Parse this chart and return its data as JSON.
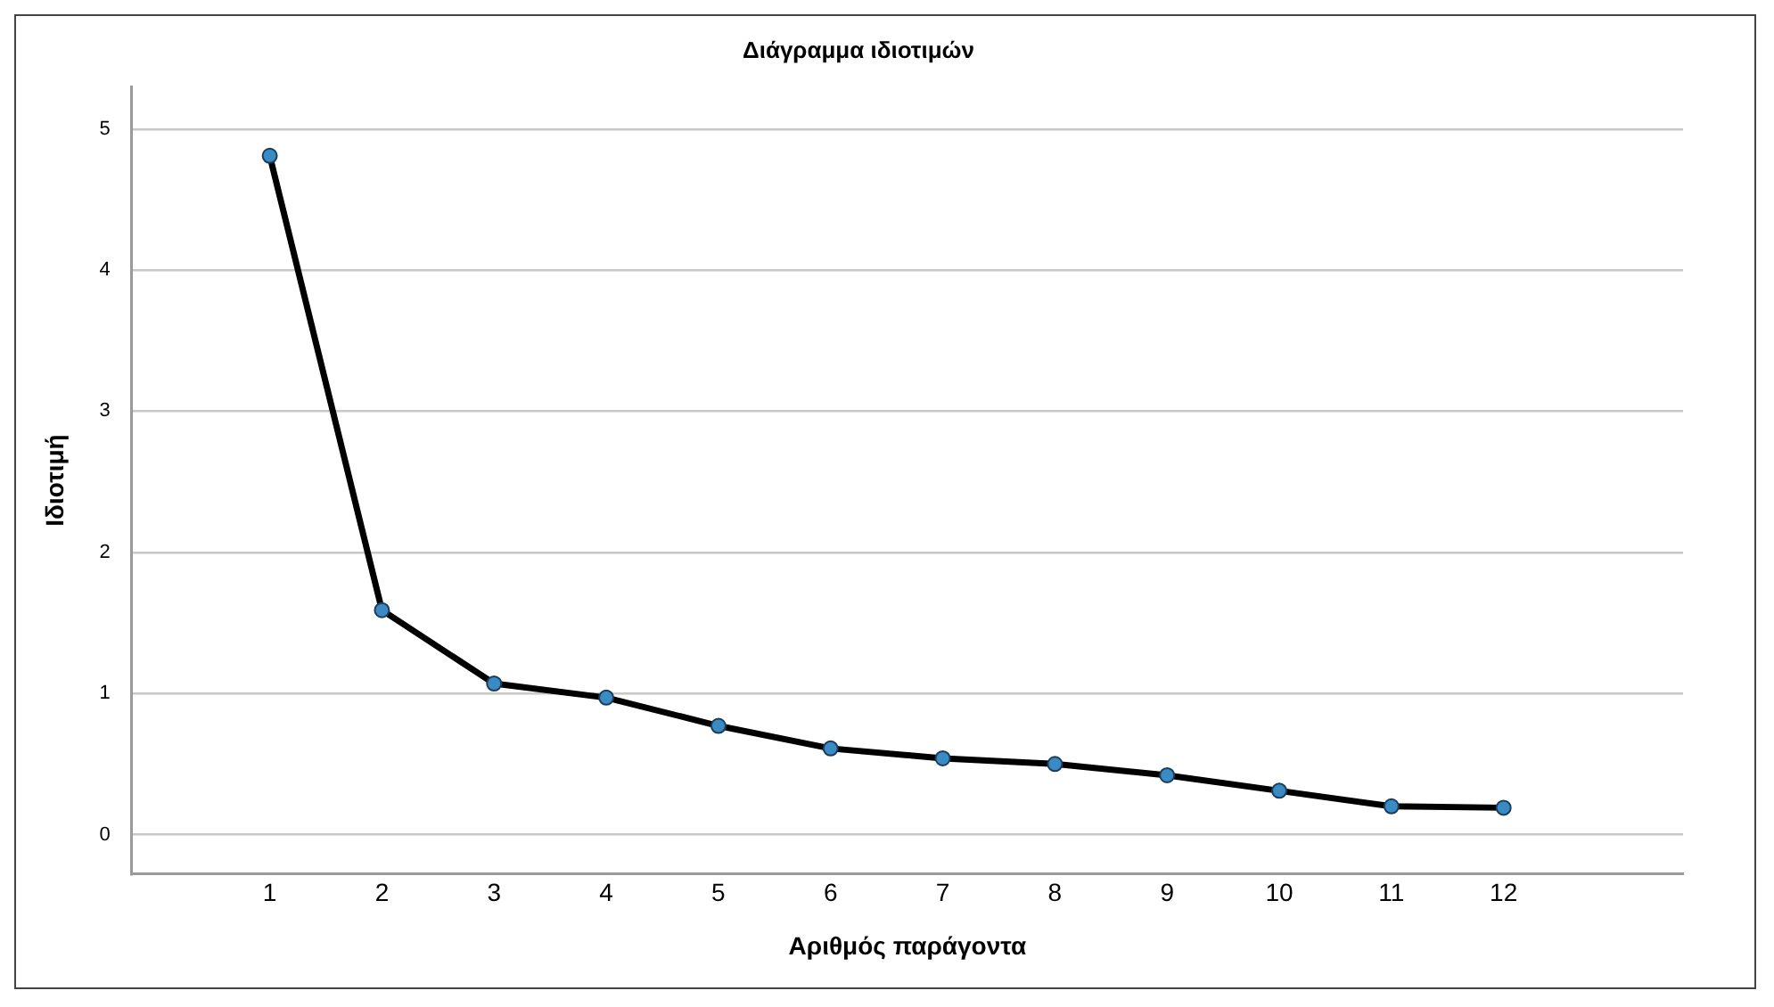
{
  "chart_data": {
    "type": "line",
    "title": "Διάγραμμα ιδιοτιμών",
    "xlabel": "Αριθμός παράγοντα",
    "ylabel": "Ιδιοτιμή",
    "x": [
      1,
      2,
      3,
      4,
      5,
      6,
      7,
      8,
      9,
      10,
      11,
      12
    ],
    "series": [
      {
        "color": "#000000",
        "values": [
          4.81,
          1.59,
          1.07,
          0.97,
          0.77,
          0.61,
          0.54,
          0.5,
          0.42,
          0.31,
          0.2,
          0.19
        ]
      }
    ],
    "xlim": [
      -0.23,
      13.6
    ],
    "xticks": [
      1,
      2,
      3,
      4,
      5,
      6,
      7,
      8,
      9,
      10,
      11,
      12
    ],
    "ylim": [
      -0.28,
      5.3
    ],
    "yticks": [
      0,
      1,
      2,
      3,
      4,
      5
    ],
    "grid": "y",
    "legend": false,
    "marker": "circle",
    "line_style": "solid"
  }
}
